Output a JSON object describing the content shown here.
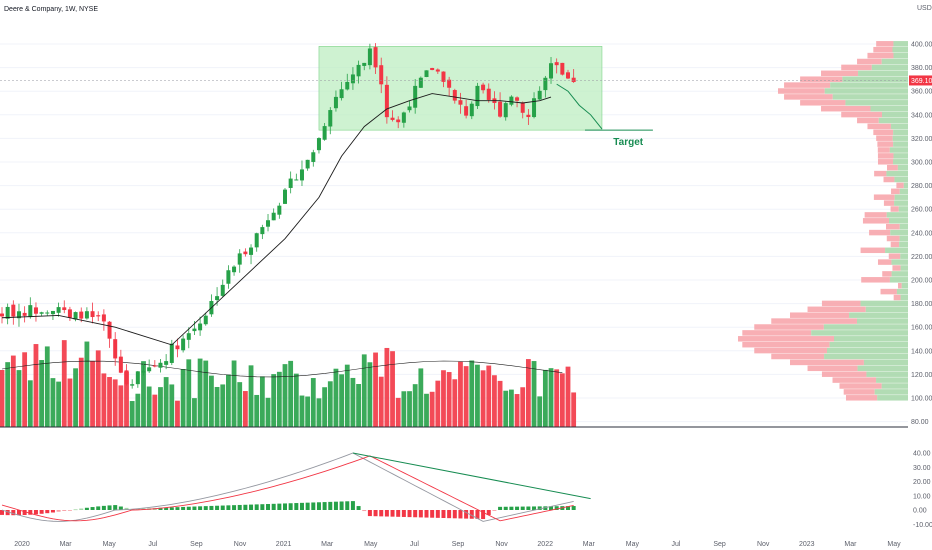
{
  "header": {
    "title": "Deere & Company, 1W, NYSE",
    "currency": "USD"
  },
  "annotations": {
    "target_label": "Target"
  },
  "chart_data": {
    "type": "candlestick",
    "title": "Deere & Company, 1W, NYSE",
    "price_axis": {
      "unit": "USD",
      "range": [
        80,
        420
      ],
      "ticks": [
        "400.00",
        "380.00",
        "360.00",
        "340.00",
        "320.00",
        "300.00",
        "280.00",
        "260.00",
        "240.00",
        "220.00",
        "200.00",
        "180.00",
        "160.00",
        "140.00",
        "120.00",
        "100.00",
        "80.00"
      ]
    },
    "last_price": {
      "value": 369.1,
      "label": "369.10",
      "color": "#f23645"
    },
    "x_axis": {
      "labels": [
        "2020",
        "Mar",
        "May",
        "Jul",
        "Sep",
        "Nov",
        "2021",
        "Mar",
        "May",
        "Jul",
        "Sep",
        "Nov",
        "2022",
        "Mar",
        "May",
        "Jul",
        "Sep",
        "Nov",
        "2023",
        "Mar",
        "May"
      ]
    },
    "colors": {
      "up": "#26a148",
      "down": "#f23645",
      "up_light": "#a5d6a7",
      "down_light": "#f7a1a7"
    },
    "price_path": [
      [
        0,
        172
      ],
      [
        5,
        175
      ],
      [
        10,
        178
      ],
      [
        12,
        166
      ],
      [
        14,
        172
      ],
      [
        18,
        162
      ],
      [
        20,
        132
      ],
      [
        22,
        112
      ],
      [
        24,
        118
      ],
      [
        26,
        125
      ],
      [
        28,
        130
      ],
      [
        30,
        142
      ],
      [
        32,
        150
      ],
      [
        34,
        160
      ],
      [
        36,
        172
      ],
      [
        38,
        190
      ],
      [
        40,
        205
      ],
      [
        42,
        220
      ],
      [
        44,
        232
      ],
      [
        46,
        245
      ],
      [
        48,
        262
      ],
      [
        50,
        272
      ],
      [
        52,
        290
      ],
      [
        54,
        300
      ],
      [
        56,
        320
      ],
      [
        58,
        348
      ],
      [
        60,
        362
      ],
      [
        62,
        375
      ],
      [
        64,
        385
      ],
      [
        65,
        398
      ],
      [
        66,
        385
      ],
      [
        67,
        370
      ],
      [
        68,
        340
      ],
      [
        70,
        333
      ],
      [
        72,
        352
      ],
      [
        74,
        368
      ],
      [
        76,
        380
      ],
      [
        78,
        372
      ],
      [
        80,
        350
      ],
      [
        82,
        342
      ],
      [
        84,
        360
      ],
      [
        86,
        352
      ],
      [
        88,
        343
      ],
      [
        90,
        358
      ],
      [
        92,
        346
      ],
      [
        93,
        338
      ],
      [
        94,
        355
      ],
      [
        95,
        360
      ],
      [
        97,
        380
      ],
      [
        98,
        378
      ],
      [
        99,
        372
      ],
      [
        100,
        366
      ],
      [
        101,
        370
      ]
    ],
    "sma": [
      [
        0,
        168
      ],
      [
        10,
        170
      ],
      [
        20,
        160
      ],
      [
        30,
        145
      ],
      [
        40,
        190
      ],
      [
        50,
        235
      ],
      [
        56,
        270
      ],
      [
        60,
        305
      ],
      [
        64,
        330
      ],
      [
        68,
        345
      ],
      [
        72,
        352
      ],
      [
        76,
        358
      ],
      [
        80,
        355
      ],
      [
        84,
        352
      ],
      [
        88,
        352
      ],
      [
        92,
        350
      ],
      [
        95,
        352
      ],
      [
        97,
        355
      ]
    ],
    "consolidation_zone": {
      "low": 327,
      "high": 398,
      "start_week": 56,
      "end_week": 106
    },
    "projection": [
      [
        98,
        366
      ],
      [
        100,
        360
      ],
      [
        102,
        348
      ],
      [
        104,
        340
      ],
      [
        106,
        328
      ]
    ],
    "target_level": 327,
    "volume_note": "weekly volume bars colored by candle direction",
    "volume_profile_note": "horizontal volume-by-price profile on right",
    "macd": {
      "axis_ticks": [
        "40.00",
        "30.00",
        "20.00",
        "10.00",
        "0.00",
        "-10.00"
      ],
      "range": [
        -15,
        45
      ],
      "peak_macd": 40,
      "peak_signal": 37,
      "trendline_note": "bearish divergence line from MACD peak to current"
    }
  }
}
